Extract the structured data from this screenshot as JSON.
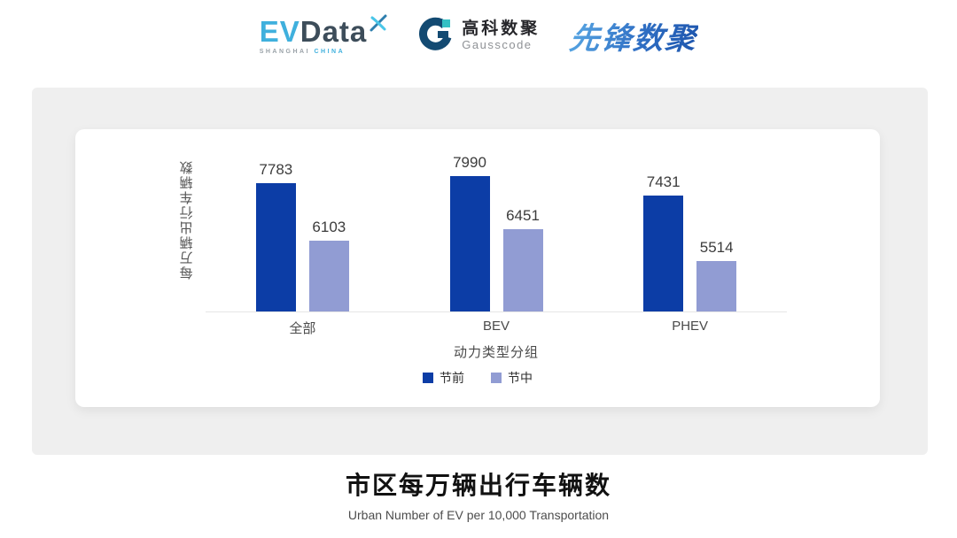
{
  "page": {
    "background": "#ffffff",
    "panel_color": "#efefef",
    "card_color": "#ffffff"
  },
  "header": {
    "evdata": {
      "ev": "EV",
      "data": "Data",
      "sub_left": "SHANGHAI",
      "sub_right": "CHINA",
      "ev_color": "#3fb0dd",
      "data_color": "#3d4d5a"
    },
    "gausscode": {
      "cn": "高科数聚",
      "en": "Gausscode",
      "mark_color": "#134a72",
      "accent_color": "#35c0c4"
    },
    "pioneer": {
      "text": "先锋数聚",
      "color": "#2a72c8"
    }
  },
  "icons": {
    "evdata_sparkle": "x-sparkle",
    "gausscode_mark": "g-ring"
  },
  "chart_data": {
    "type": "bar",
    "title": "市区每万辆出行车辆数",
    "subtitle": "Urban Number of EV per 10,000 Transportation",
    "xlabel": "动力类型分组",
    "ylabel": "每万辆出行车辆数",
    "categories": [
      "全部",
      "BEV",
      "PHEV"
    ],
    "series": [
      {
        "name": "节前",
        "color": "#0c3da6",
        "values": [
          7783,
          7990,
          7431
        ]
      },
      {
        "name": "节中",
        "color": "#919cd3",
        "values": [
          6103,
          6451,
          5514
        ]
      }
    ],
    "ylim": [
      4040,
      8460
    ],
    "grid": false,
    "legend_position": "bottom",
    "bar_labels": true
  }
}
